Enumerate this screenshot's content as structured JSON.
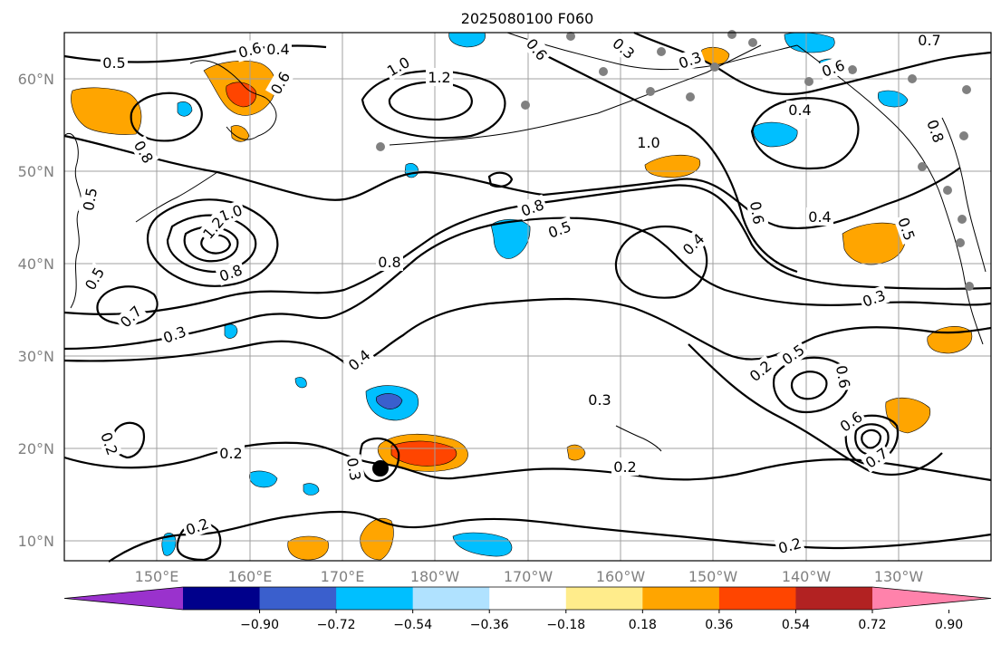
{
  "title": "2025080100 F060",
  "lat_labels": [
    "60°N",
    "50°N",
    "40°N",
    "30°N",
    "20°N",
    "10°N"
  ],
  "lon_labels": [
    "150°E",
    "160°E",
    "170°E",
    "180°W",
    "170°W",
    "160°W",
    "150°W",
    "140°W",
    "130°W"
  ],
  "colorbar": {
    "tick_labels": [
      "−0.90",
      "−0.72",
      "−0.54",
      "−0.36",
      "−0.18",
      "0.18",
      "0.36",
      "0.54",
      "0.72",
      "0.90"
    ],
    "colors": [
      "#9a32cd",
      "#00008b",
      "#3a5fcd",
      "#00bfff",
      "#b0e2ff",
      "#ffffff",
      "#ffec8b",
      "#ffa500",
      "#ff4500",
      "#b22222",
      "#ff82ab"
    ]
  },
  "contour_labels": [
    "0.5",
    "0.6",
    "0.6",
    "0.8",
    "0.5",
    "1.0",
    "1.2",
    "1.0",
    "1.2",
    "0.8",
    "0.5",
    "0.7",
    "0.3",
    "0.4",
    "0.8",
    "0.8",
    "0.5",
    "1.0",
    "0.4",
    "0.6",
    "0.6",
    "0.4",
    "0.3",
    "0.3",
    "0.7",
    "0.5",
    "0.8",
    "0.3",
    "0.4",
    "0.5",
    "0.6",
    "0.6",
    "0.7",
    "0.3",
    "0.2",
    "0.2",
    "0.2",
    "0.3",
    "0.2",
    "0.2",
    "0.2",
    "0.4",
    "0.6"
  ],
  "map_colors": {
    "positive_fill": "#ffa500",
    "strong_positive_fill": "#ff4500",
    "negative_fill": "#00bfff",
    "strong_negative_fill": "#3a5fcd",
    "contour_line": "#000000",
    "grid_line": "#a0a0a0",
    "station_marker": "#808080"
  }
}
